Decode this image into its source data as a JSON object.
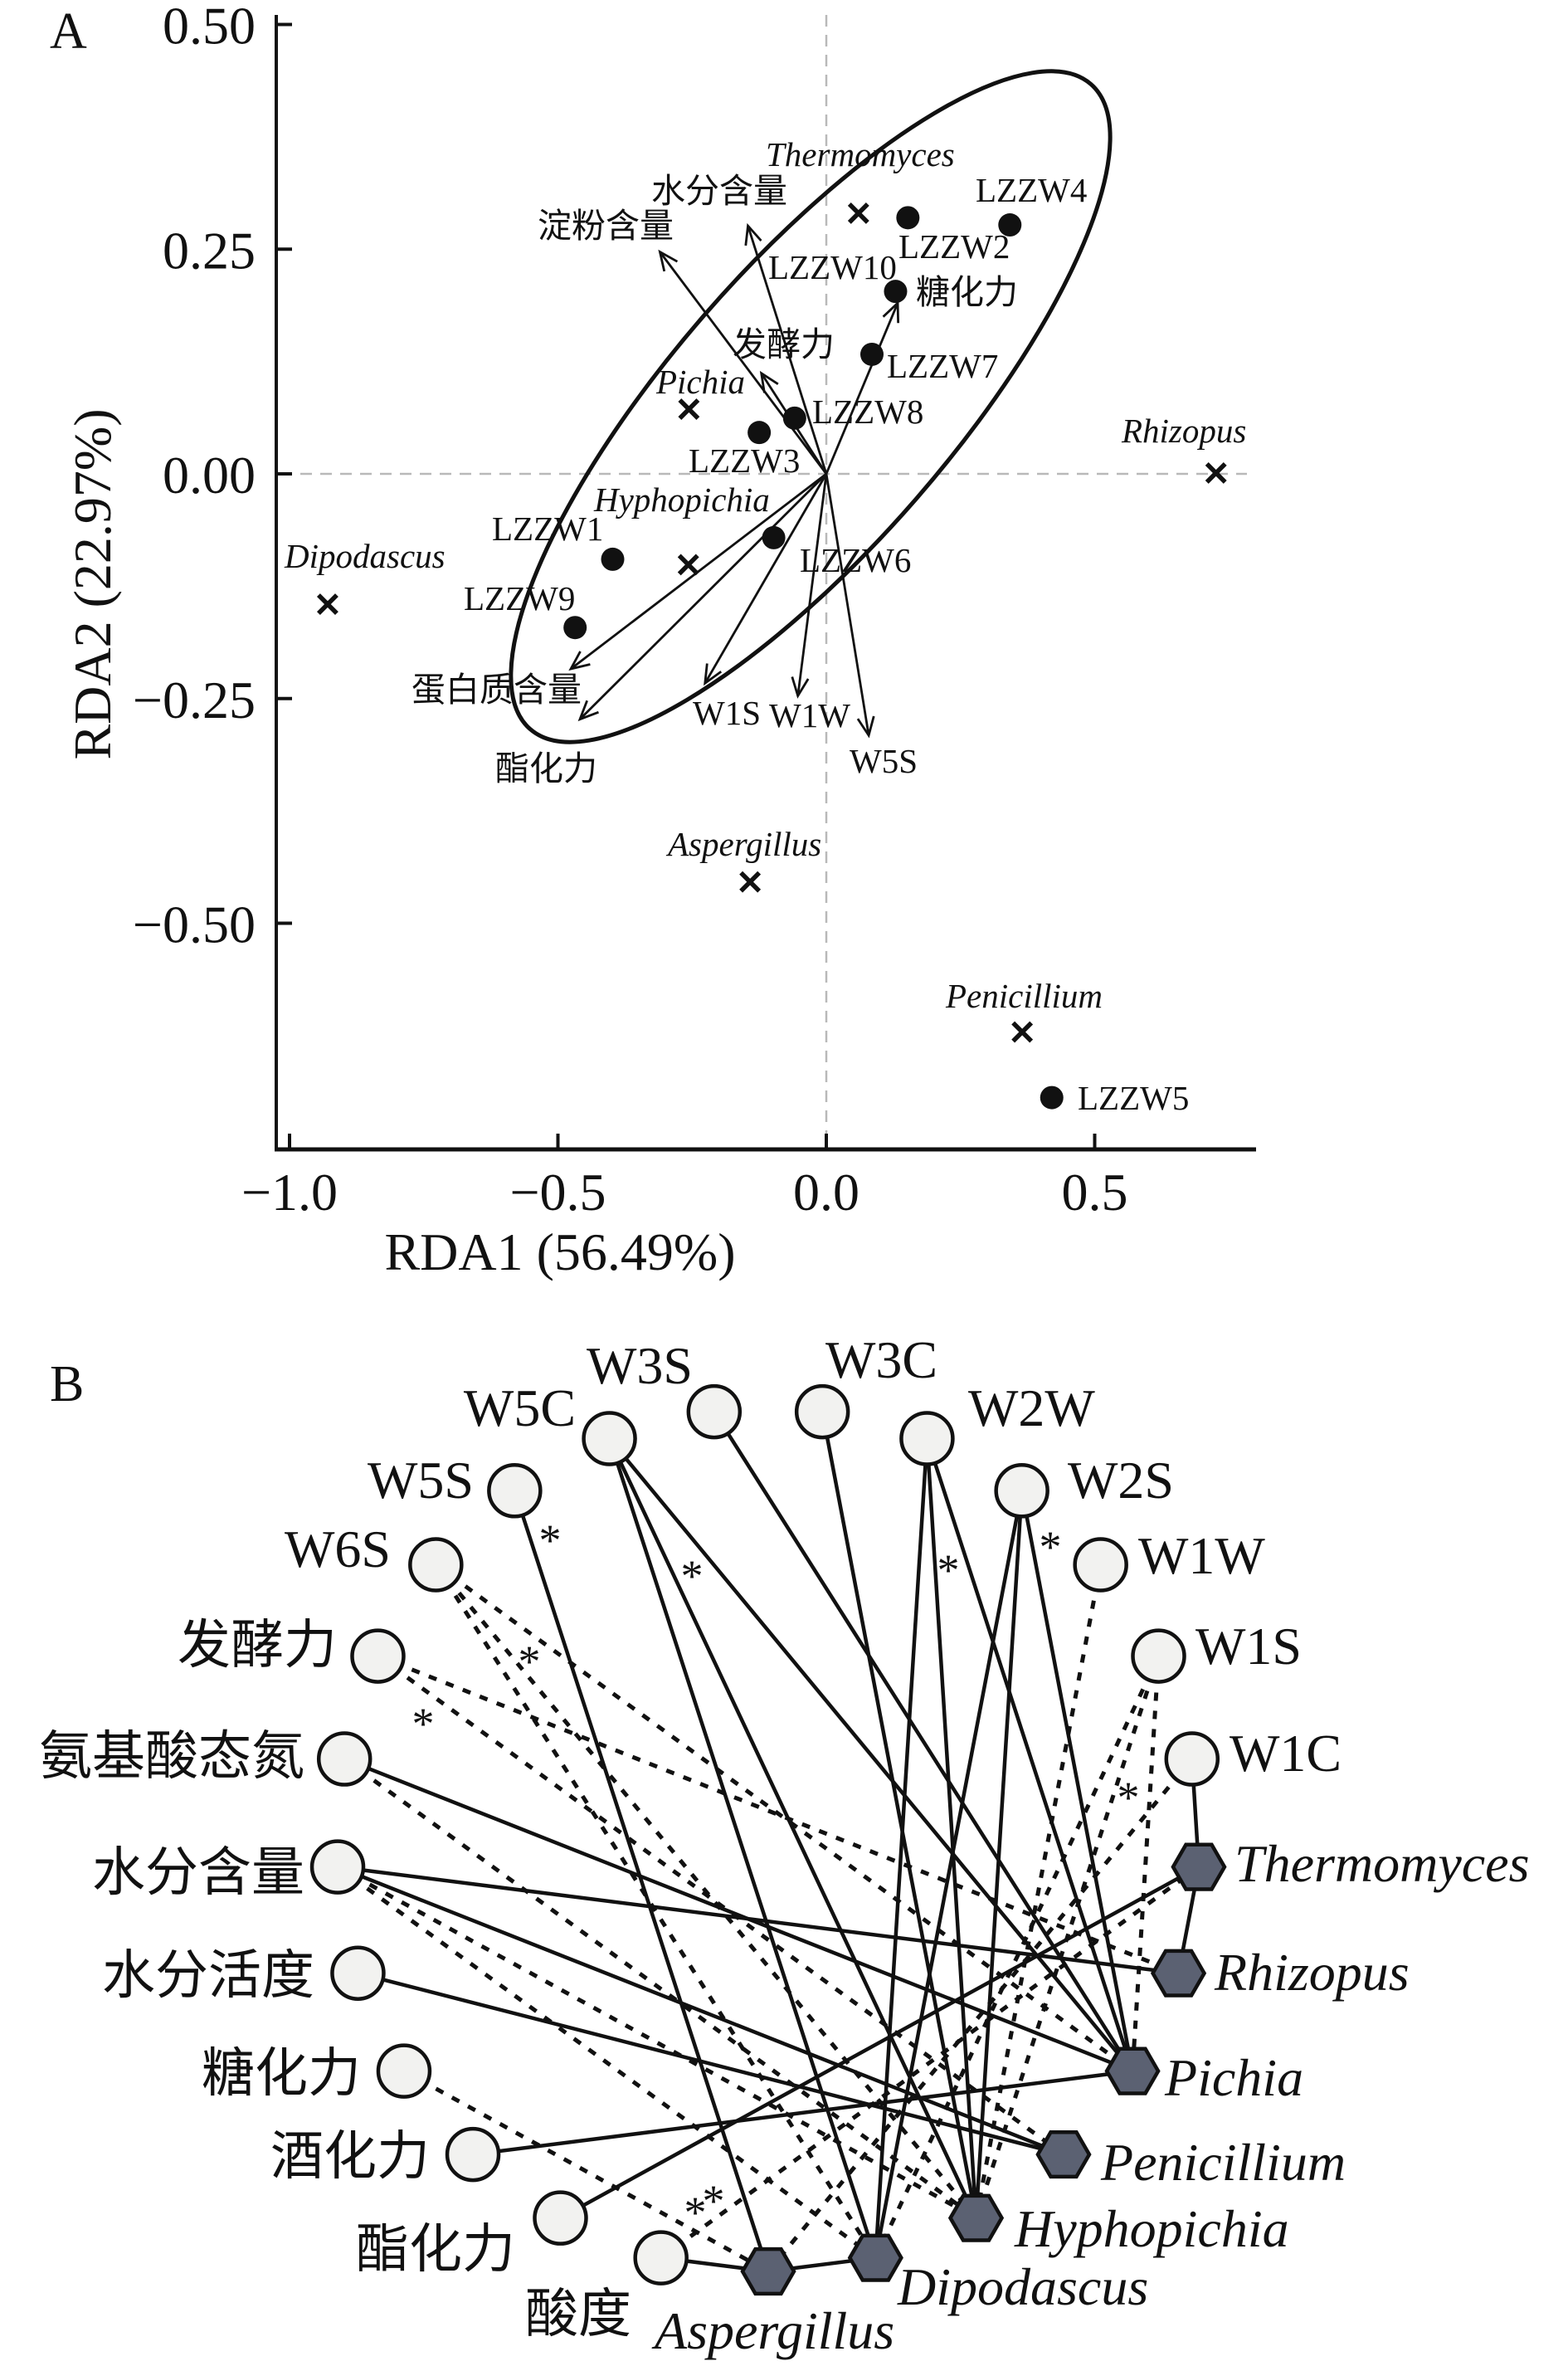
{
  "colors": {
    "ink": "#111111",
    "node_fill": "#f2f2f0",
    "hexagon_fill": "#5b6172",
    "reference_line": "#b9b9b9"
  },
  "chart_data": [
    {
      "type": "scatter",
      "panel": "A",
      "title": "",
      "xlabel": "RDA1 (56.49%)",
      "ylabel": "RDA2 (22.97%)",
      "xlim": [
        -1.03,
        0.8
      ],
      "ylim": [
        -0.75,
        0.51
      ],
      "grid": false,
      "reference_lines": {
        "x": 0,
        "y": 0
      },
      "xticks": [
        {
          "value": -1.0,
          "label": "−1.0"
        },
        {
          "value": -0.5,
          "label": "−0.5"
        },
        {
          "value": 0.0,
          "label": "0.0"
        },
        {
          "value": 0.5,
          "label": "0.5"
        }
      ],
      "yticks": [
        {
          "value": 0.5,
          "label": "0.50"
        },
        {
          "value": 0.25,
          "label": "0.25"
        },
        {
          "value": 0.0,
          "label": "0.00"
        },
        {
          "value": -0.25,
          "label": "−0.25"
        },
        {
          "value": -0.5,
          "label": "−0.50"
        }
      ],
      "samples": [
        {
          "label": "LZZW1",
          "x": -0.398,
          "y": -0.095
        },
        {
          "label": "LZZW2",
          "x": 0.152,
          "y": 0.285
        },
        {
          "label": "LZZW3",
          "x": -0.125,
          "y": 0.046
        },
        {
          "label": "LZZW4",
          "x": 0.342,
          "y": 0.277
        },
        {
          "label": "LZZW5",
          "x": 0.42,
          "y": -0.694
        },
        {
          "label": "LZZW6",
          "x": -0.098,
          "y": -0.071
        },
        {
          "label": "LZZW7",
          "x": 0.085,
          "y": 0.133
        },
        {
          "label": "LZZW8",
          "x": -0.059,
          "y": 0.062
        },
        {
          "label": "LZZW9",
          "x": -0.468,
          "y": -0.171
        },
        {
          "label": "LZZW10",
          "x": 0.129,
          "y": 0.203
        }
      ],
      "genera": [
        {
          "label": "Thermomyces",
          "x": 0.06,
          "y": 0.29
        },
        {
          "label": "Pichia",
          "x": -0.256,
          "y": 0.072
        },
        {
          "label": "Hyphopichia",
          "x": -0.257,
          "y": -0.101
        },
        {
          "label": "Dipodascus",
          "x": -0.929,
          "y": -0.145
        },
        {
          "label": "Rhizopus",
          "x": 0.726,
          "y": 0.001
        },
        {
          "label": "Aspergillus",
          "x": -0.142,
          "y": -0.454
        },
        {
          "label": "Penicillium",
          "x": 0.365,
          "y": -0.621
        }
      ],
      "vectors": [
        {
          "label": "淀粉含量",
          "x": -0.31,
          "y": 0.247
        },
        {
          "label": "水分含量",
          "x": -0.146,
          "y": 0.276
        },
        {
          "label": "发酵力",
          "x": -0.121,
          "y": 0.112
        },
        {
          "label": "糖化力",
          "x": 0.133,
          "y": 0.19
        },
        {
          "label": "蛋白质含量",
          "x": -0.476,
          "y": -0.217
        },
        {
          "label": "酯化力",
          "x": -0.459,
          "y": -0.273
        },
        {
          "label": "W1S",
          "x": -0.226,
          "y": -0.233
        },
        {
          "label": "W1W",
          "x": -0.053,
          "y": -0.247
        },
        {
          "label": "W5S",
          "x": 0.079,
          "y": -0.291
        }
      ]
    },
    {
      "type": "network",
      "panel": "B",
      "nodes": [
        {
          "label": "W3C",
          "hexagon": false
        },
        {
          "label": "W2W",
          "hexagon": false
        },
        {
          "label": "W2S",
          "hexagon": false
        },
        {
          "label": "W1W",
          "hexagon": false
        },
        {
          "label": "W1S",
          "hexagon": false
        },
        {
          "label": "W1C",
          "hexagon": false
        },
        {
          "label": "Thermomyces",
          "hexagon": true
        },
        {
          "label": "Rhizopus",
          "hexagon": true
        },
        {
          "label": "Pichia",
          "hexagon": true
        },
        {
          "label": "Penicillium",
          "hexagon": true
        },
        {
          "label": "Hyphopichia",
          "hexagon": true
        },
        {
          "label": "Dipodascus",
          "hexagon": true
        },
        {
          "label": "Aspergillus",
          "hexagon": true
        },
        {
          "label": "酸度",
          "hexagon": false
        },
        {
          "label": "酯化力",
          "hexagon": false
        },
        {
          "label": "酒化力",
          "hexagon": false
        },
        {
          "label": "糖化力",
          "hexagon": false
        },
        {
          "label": "水分活度",
          "hexagon": false
        },
        {
          "label": "水分含量",
          "hexagon": false
        },
        {
          "label": "氨基酸态氮",
          "hexagon": false
        },
        {
          "label": "发酵力",
          "hexagon": false
        },
        {
          "label": "W6S",
          "hexagon": false
        },
        {
          "label": "W5S",
          "hexagon": false
        },
        {
          "label": "W5C",
          "hexagon": false
        },
        {
          "label": "W3S",
          "hexagon": false
        }
      ],
      "edges": [
        {
          "s": 22,
          "t": 12,
          "dashed": false,
          "mark": "*"
        },
        {
          "s": 23,
          "t": 11,
          "dashed": false
        },
        {
          "s": 23,
          "t": 10,
          "dashed": false,
          "mark": "*"
        },
        {
          "s": 23,
          "t": 8,
          "dashed": false
        },
        {
          "s": 24,
          "t": 8,
          "dashed": false
        },
        {
          "s": 0,
          "t": 10,
          "dashed": false
        },
        {
          "s": 1,
          "t": 11,
          "dashed": false
        },
        {
          "s": 1,
          "t": 10,
          "dashed": false,
          "mark": "*"
        },
        {
          "s": 1,
          "t": 8,
          "dashed": false
        },
        {
          "s": 2,
          "t": 11,
          "dashed": false
        },
        {
          "s": 2,
          "t": 10,
          "dashed": false
        },
        {
          "s": 2,
          "t": 8,
          "dashed": false,
          "mark": "*"
        },
        {
          "s": 5,
          "t": 6,
          "dashed": false
        },
        {
          "s": 6,
          "t": 7,
          "dashed": false
        },
        {
          "s": 19,
          "t": 8,
          "dashed": false
        },
        {
          "s": 18,
          "t": 7,
          "dashed": false
        },
        {
          "s": 18,
          "t": 9,
          "dashed": false
        },
        {
          "s": 17,
          "t": 9,
          "dashed": false
        },
        {
          "s": 15,
          "t": 8,
          "dashed": false
        },
        {
          "s": 14,
          "t": 6,
          "dashed": false
        },
        {
          "s": 13,
          "t": 12,
          "dashed": false
        },
        {
          "s": 12,
          "t": 11,
          "dashed": false
        },
        {
          "s": 21,
          "t": 11,
          "dashed": true
        },
        {
          "s": 21,
          "t": 10,
          "dashed": true,
          "mark": "*"
        },
        {
          "s": 21,
          "t": 8,
          "dashed": true
        },
        {
          "s": 20,
          "t": 7,
          "dashed": true
        },
        {
          "s": 20,
          "t": 9,
          "dashed": true,
          "mark": "*"
        },
        {
          "s": 19,
          "t": 10,
          "dashed": true
        },
        {
          "s": 18,
          "t": 11,
          "dashed": true
        },
        {
          "s": 18,
          "t": 10,
          "dashed": true
        },
        {
          "s": 16,
          "t": 12,
          "dashed": true,
          "mark": "*"
        },
        {
          "s": 13,
          "t": 6,
          "dashed": true,
          "mark": "*"
        },
        {
          "s": 3,
          "t": 10,
          "dashed": true
        },
        {
          "s": 4,
          "t": 8,
          "dashed": true
        },
        {
          "s": 4,
          "t": 10,
          "dashed": true,
          "mark": "*"
        },
        {
          "s": 4,
          "t": 11,
          "dashed": true
        },
        {
          "s": 5,
          "t": 12,
          "dashed": true
        }
      ]
    }
  ]
}
